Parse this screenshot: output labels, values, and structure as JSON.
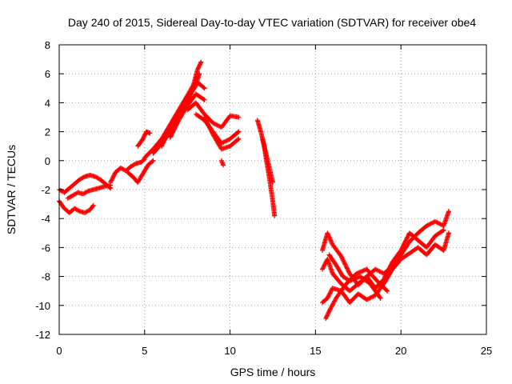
{
  "chart_data": {
    "type": "scatter",
    "title": "Day 240 of 2015, Sidereal Day-to-day VTEC variation (SDTVAR) for receiver obe4",
    "xlabel": "GPS time / hours",
    "ylabel": "SDTVAR / TECUs",
    "xlim": [
      0,
      25
    ],
    "ylim": [
      -12,
      8
    ],
    "xticks": [
      0,
      5,
      10,
      15,
      20,
      25
    ],
    "yticks": [
      -12,
      -10,
      -8,
      -6,
      -4,
      -2,
      0,
      2,
      4,
      6,
      8
    ],
    "grid": true,
    "marker": "plus",
    "color": "#ff0000",
    "series": [
      {
        "x": [
          0.0,
          0.3,
          0.6,
          0.9,
          1.2,
          1.5,
          1.8,
          2.1,
          2.4,
          2.7,
          3.0
        ],
        "y": [
          -2.0,
          -2.2,
          -1.9,
          -1.6,
          -1.3,
          -1.1,
          -1.0,
          -1.1,
          -1.3,
          -1.6,
          -1.9
        ]
      },
      {
        "x": [
          0.0,
          0.3,
          0.6,
          0.9,
          1.2,
          1.5,
          1.8,
          2.0
        ],
        "y": [
          -2.8,
          -3.3,
          -3.6,
          -3.3,
          -3.5,
          -3.6,
          -3.4,
          -3.1
        ]
      },
      {
        "x": [
          0.5,
          0.8,
          1.1,
          1.4,
          1.7,
          2.0,
          2.3,
          2.6,
          3.0
        ],
        "y": [
          -2.6,
          -2.4,
          -2.2,
          -2.3,
          -2.1,
          -2.0,
          -1.9,
          -1.8,
          -1.7
        ]
      },
      {
        "x": [
          3.0,
          3.3,
          3.6,
          3.9,
          4.2,
          4.5,
          4.8,
          5.0
        ],
        "y": [
          -1.5,
          -0.8,
          -0.5,
          -0.7,
          -0.4,
          -0.2,
          -0.1,
          0.1
        ]
      },
      {
        "x": [
          4.0,
          4.3,
          4.6,
          4.9,
          5.2,
          5.5
        ],
        "y": [
          -0.8,
          -1.1,
          -1.5,
          -0.9,
          -0.3,
          0.0
        ]
      },
      {
        "x": [
          4.6,
          4.9,
          5.1,
          5.3
        ],
        "y": [
          1.0,
          1.5,
          2.0,
          1.9
        ]
      },
      {
        "x": [
          5.0,
          5.5,
          6.0,
          6.5,
          7.0,
          7.5,
          8.0,
          8.5
        ],
        "y": [
          0.2,
          0.8,
          1.5,
          2.5,
          3.5,
          4.5,
          5.5,
          5.0
        ]
      },
      {
        "x": [
          5.5,
          6.0,
          6.5,
          7.0,
          7.5,
          8.0,
          8.2
        ],
        "y": [
          0.5,
          1.2,
          2.0,
          3.2,
          4.2,
          5.2,
          6.0
        ]
      },
      {
        "x": [
          6.0,
          6.5,
          7.0,
          7.5,
          7.8,
          8.1,
          8.3
        ],
        "y": [
          1.0,
          2.3,
          3.0,
          4.0,
          5.0,
          6.3,
          6.8
        ]
      },
      {
        "x": [
          6.5,
          7.0,
          7.5,
          8.0,
          8.5
        ],
        "y": [
          1.6,
          2.8,
          3.8,
          4.6,
          4.2
        ]
      },
      {
        "x": [
          7.5,
          8.0,
          8.5,
          9.0,
          9.5,
          10.0,
          10.5
        ],
        "y": [
          3.5,
          4.0,
          3.2,
          2.6,
          2.3,
          3.1,
          3.0
        ]
      },
      {
        "x": [
          8.0,
          8.5,
          9.0,
          9.5,
          10.0,
          10.5
        ],
        "y": [
          3.2,
          2.8,
          2.0,
          1.2,
          1.5,
          2.0
        ]
      },
      {
        "x": [
          8.5,
          9.0,
          9.5,
          10.0,
          10.5
        ],
        "y": [
          3.0,
          1.8,
          0.8,
          1.0,
          1.5
        ]
      },
      {
        "x": [
          9.5,
          9.6
        ],
        "y": [
          0.0,
          -0.3
        ]
      },
      {
        "x": [
          11.6,
          11.8,
          12.0,
          12.1,
          12.2,
          12.3,
          12.4,
          12.5,
          12.6
        ],
        "y": [
          2.8,
          2.0,
          1.0,
          0.2,
          -0.5,
          -1.2,
          -2.0,
          -2.8,
          -3.8
        ]
      },
      {
        "x": [
          11.9,
          12.1,
          12.3,
          12.5
        ],
        "y": [
          1.5,
          0.5,
          -0.5,
          -1.5
        ]
      },
      {
        "x": [
          15.4,
          15.7,
          16.0,
          16.5,
          17.0,
          17.5,
          18.0,
          18.5,
          19.0,
          19.5,
          20.0,
          20.5,
          21.0,
          21.5,
          22.0,
          22.5,
          22.8
        ],
        "y": [
          -6.2,
          -5.0,
          -5.8,
          -6.6,
          -7.8,
          -8.6,
          -8.0,
          -7.5,
          -7.8,
          -7.3,
          -6.5,
          -5.6,
          -5.0,
          -4.5,
          -4.2,
          -4.5,
          -3.5
        ]
      },
      {
        "x": [
          15.4,
          15.7,
          16.0,
          16.5,
          17.0,
          17.5,
          18.0,
          18.5,
          19.0,
          19.5,
          20.0,
          20.5,
          21.0,
          21.5,
          22.0,
          22.5
        ],
        "y": [
          -7.5,
          -6.8,
          -7.8,
          -8.5,
          -9.0,
          -8.5,
          -8.0,
          -8.8,
          -8.2,
          -7.0,
          -6.2,
          -5.0,
          -5.5,
          -6.0,
          -5.2,
          -4.8
        ]
      },
      {
        "x": [
          15.4,
          15.7,
          16.0,
          16.5,
          17.0,
          17.5,
          18.0,
          18.5,
          19.0,
          19.5,
          20.0,
          20.5,
          21.0,
          21.5,
          22.0,
          22.5,
          22.8
        ],
        "y": [
          -9.8,
          -9.5,
          -8.8,
          -9.0,
          -9.8,
          -9.2,
          -9.6,
          -9.3,
          -8.5,
          -7.5,
          -6.8,
          -6.4,
          -6.0,
          -6.5,
          -5.8,
          -6.2,
          -5.0
        ]
      },
      {
        "x": [
          15.6,
          15.8,
          16.2,
          16.8,
          17.4,
          18.0,
          18.6,
          19.2
        ],
        "y": [
          -10.9,
          -10.4,
          -9.5,
          -8.5,
          -7.8,
          -7.5,
          -8.3,
          -9.0
        ]
      },
      {
        "x": [
          15.8,
          16.2,
          16.6,
          17.0,
          17.6,
          18.2,
          18.8
        ],
        "y": [
          -6.5,
          -7.2,
          -8.0,
          -8.3,
          -8.0,
          -8.5,
          -9.5
        ]
      }
    ]
  }
}
